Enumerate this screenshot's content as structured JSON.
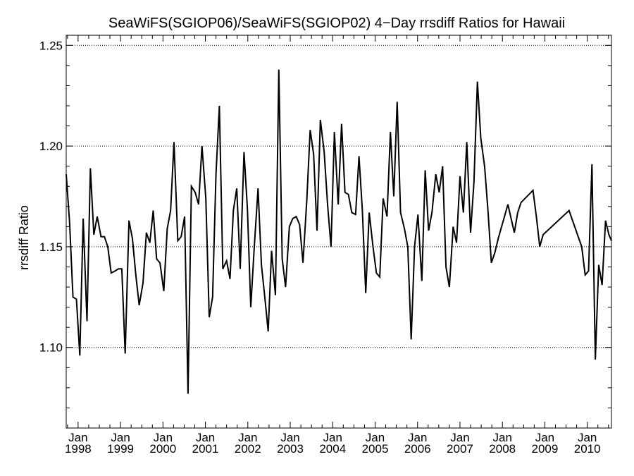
{
  "chart_data": {
    "type": "line",
    "title": "SeaWiFS(SGIOP06)/SeaWiFS(SGIOP02) 4−Day rrsdiff Ratios for Hawaii",
    "xlabel": "",
    "ylabel": "rrsdiff Ratio",
    "xlim": [
      1997.72,
      2010.57
    ],
    "ylim": [
      1.06,
      1.255
    ],
    "y_ticks": [
      1.1,
      1.15,
      1.2,
      1.25
    ],
    "y_tick_labels": [
      "1.10",
      "1.15",
      "1.20",
      "1.25"
    ],
    "x_ticks": [
      1998,
      1999,
      2000,
      2001,
      2002,
      2003,
      2004,
      2005,
      2006,
      2007,
      2008,
      2009,
      2010
    ],
    "x_tick_month_label": "Jan",
    "x_tick_year_labels": [
      "1998",
      "1999",
      "2000",
      "2001",
      "2002",
      "2003",
      "2004",
      "2005",
      "2006",
      "2007",
      "2008",
      "2009",
      "2010"
    ],
    "grid": "y-major-dotted",
    "series": [
      {
        "color": "#000000",
        "x": [
          1997.72,
          1997.8,
          1997.88,
          1997.96,
          1998.04,
          1998.12,
          1998.21,
          1998.29,
          1998.37,
          1998.45,
          1998.54,
          1998.62,
          1998.7,
          1998.78,
          1998.87,
          1998.95,
          1999.03,
          1999.11,
          1999.2,
          1999.28,
          1999.36,
          1999.44,
          1999.53,
          1999.61,
          1999.69,
          1999.77,
          1999.85,
          1999.93,
          2000.02,
          2000.1,
          2000.18,
          2000.26,
          2000.35,
          2000.43,
          2000.51,
          2000.59,
          2000.67,
          2000.76,
          2000.84,
          2000.92,
          2001.01,
          2001.09,
          2001.17,
          2001.25,
          2001.33,
          2001.41,
          2001.5,
          2001.58,
          2001.66,
          2001.74,
          2001.82,
          2001.91,
          2001.99,
          2002.07,
          2002.15,
          2002.24,
          2002.32,
          2002.4,
          2002.48,
          2002.56,
          2002.65,
          2002.73,
          2002.81,
          2002.89,
          2002.98,
          2003.06,
          2003.14,
          2003.22,
          2003.3,
          2003.39,
          2003.47,
          2003.55,
          2003.63,
          2003.71,
          2003.8,
          2003.88,
          2003.96,
          2004.04,
          2004.13,
          2004.21,
          2004.29,
          2004.37,
          2004.45,
          2004.54,
          2004.62,
          2004.7,
          2004.78,
          2004.86,
          2004.95,
          2005.03,
          2005.11,
          2005.19,
          2005.28,
          2005.36,
          2005.44,
          2005.52,
          2005.6,
          2005.69,
          2005.77,
          2005.85,
          2005.93,
          2006.01,
          2006.1,
          2006.18,
          2006.26,
          2006.34,
          2006.43,
          2006.51,
          2006.59,
          2006.67,
          2006.75,
          2006.84,
          2006.92,
          2007.0,
          2007.08,
          2007.16,
          2007.25,
          2007.33,
          2007.41,
          2007.49,
          2007.58,
          2007.66,
          2007.74,
          2007.82,
          2007.9,
          2008.13,
          2008.28,
          2008.36,
          2008.44,
          2008.72,
          2008.8,
          2008.88,
          2008.96,
          2009.57,
          2009.87,
          2009.95,
          2010.03,
          2010.11,
          2010.19,
          2010.27,
          2010.35,
          2010.43,
          2010.51,
          2010.57
        ],
        "y": [
          1.186,
          1.162,
          1.125,
          1.124,
          1.096,
          1.164,
          1.113,
          1.189,
          1.156,
          1.165,
          1.155,
          1.155,
          1.15,
          1.137,
          1.138,
          1.139,
          1.139,
          1.097,
          1.163,
          1.154,
          1.136,
          1.121,
          1.132,
          1.157,
          1.152,
          1.168,
          1.144,
          1.142,
          1.128,
          1.159,
          1.168,
          1.202,
          1.153,
          1.155,
          1.165,
          1.077,
          1.18,
          1.177,
          1.171,
          1.2,
          1.174,
          1.115,
          1.125,
          1.186,
          1.22,
          1.139,
          1.143,
          1.134,
          1.168,
          1.179,
          1.139,
          1.197,
          1.169,
          1.12,
          1.149,
          1.179,
          1.141,
          1.125,
          1.108,
          1.148,
          1.126,
          1.238,
          1.144,
          1.13,
          1.16,
          1.164,
          1.165,
          1.161,
          1.142,
          1.173,
          1.208,
          1.196,
          1.158,
          1.213,
          1.197,
          1.171,
          1.15,
          1.207,
          1.171,
          1.211,
          1.177,
          1.176,
          1.167,
          1.166,
          1.195,
          1.168,
          1.127,
          1.167,
          1.15,
          1.137,
          1.135,
          1.174,
          1.165,
          1.207,
          1.175,
          1.222,
          1.167,
          1.159,
          1.15,
          1.104,
          1.15,
          1.166,
          1.133,
          1.188,
          1.158,
          1.167,
          1.186,
          1.177,
          1.19,
          1.14,
          1.13,
          1.16,
          1.152,
          1.185,
          1.167,
          1.202,
          1.157,
          1.182,
          1.232,
          1.204,
          1.19,
          1.168,
          1.142,
          1.147,
          1.154,
          1.171,
          1.157,
          1.167,
          1.172,
          1.178,
          1.165,
          1.15,
          1.156,
          1.168,
          1.15,
          1.136,
          1.138,
          1.191,
          1.094,
          1.141,
          1.131,
          1.163,
          1.156,
          1.153
        ]
      }
    ]
  }
}
